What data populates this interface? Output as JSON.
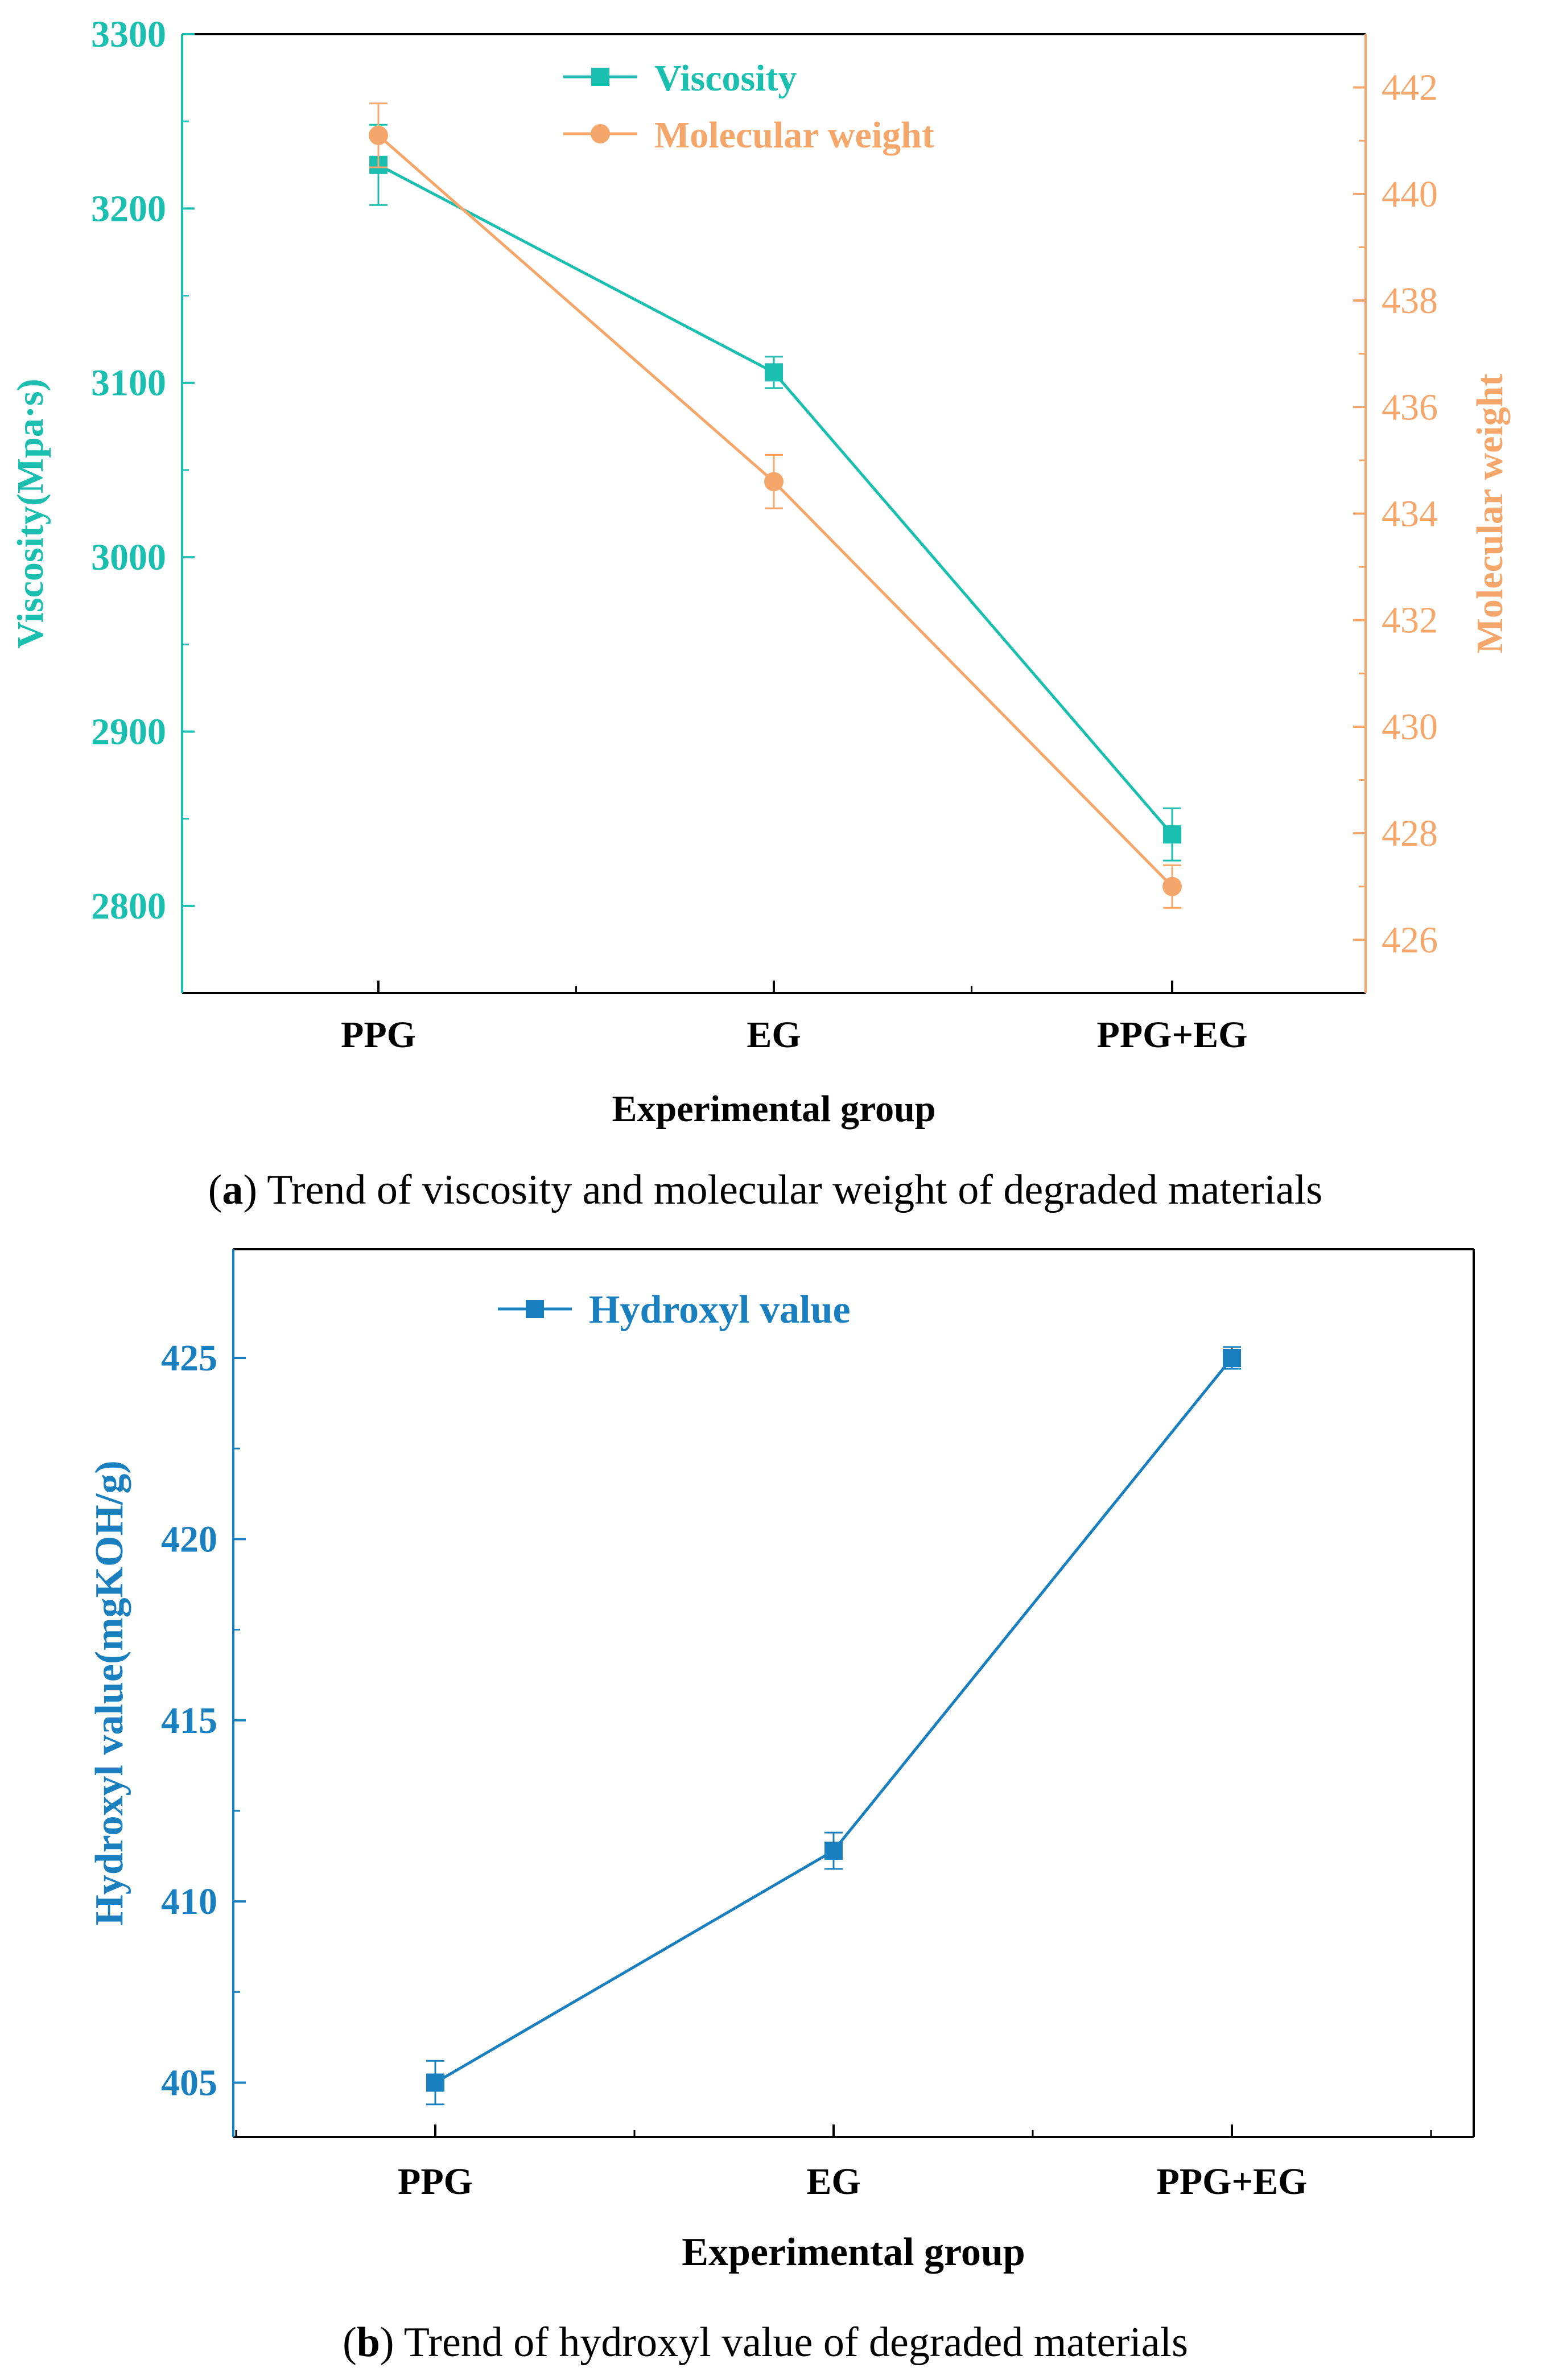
{
  "colors": {
    "viscosity": "#1ABFB0",
    "molecular_weight": "#F5A66A",
    "hydroxyl": "#1A7FBF",
    "axis": "#000000"
  },
  "chart_data": [
    {
      "id": "a",
      "type": "line",
      "categories": [
        "PPG",
        "EG",
        "PPG+EG"
      ],
      "xlabel": "Experimental group",
      "ylabel": "Viscosity(Mpa·s)",
      "y2label": "Molecular weight",
      "ylim": [
        2750,
        3300
      ],
      "y2lim": [
        425,
        443
      ],
      "yticks": [
        2800,
        2900,
        3000,
        3100,
        3200,
        3300
      ],
      "y2ticks": [
        426,
        428,
        430,
        432,
        434,
        436,
        438,
        440,
        442
      ],
      "legend_position": "top-center",
      "series": [
        {
          "name": "Viscosity",
          "axis": "left",
          "marker": "square",
          "values": [
            3225,
            3106,
            2841
          ],
          "errors": [
            23,
            9,
            15
          ]
        },
        {
          "name": "Molecular weight",
          "axis": "right",
          "marker": "circle",
          "values": [
            441.1,
            434.6,
            427.0
          ],
          "errors": [
            0.6,
            0.5,
            0.4
          ]
        }
      ],
      "caption_label": "a",
      "caption_text": "Trend of viscosity and molecular weight of degraded materials"
    },
    {
      "id": "b",
      "type": "line",
      "categories": [
        "PPG",
        "EG",
        "PPG+EG"
      ],
      "xlabel": "Experimental group",
      "ylabel": "Hydroxyl value(mgKOH/g)",
      "ylim": [
        403.5,
        428
      ],
      "yticks": [
        405,
        410,
        415,
        420,
        425
      ],
      "legend_position": "top-center",
      "series": [
        {
          "name": "Hydroxyl value",
          "axis": "left",
          "marker": "square",
          "values": [
            405.0,
            411.4,
            425.0
          ],
          "errors": [
            0.6,
            0.5,
            0.3
          ]
        }
      ],
      "caption_label": "b",
      "caption_text": "Trend of hydroxyl value of degraded materials"
    }
  ]
}
